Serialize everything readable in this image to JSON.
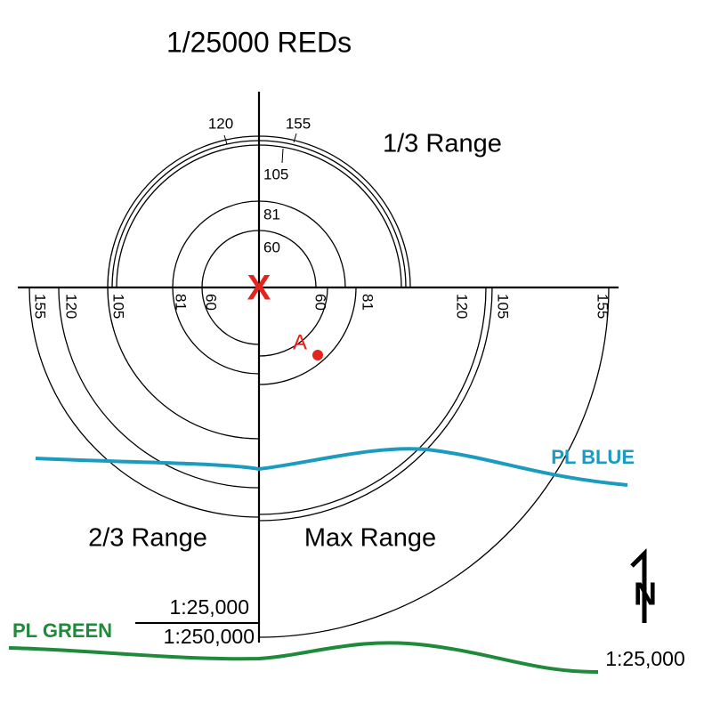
{
  "title": "1/25000 REDs",
  "sectors": {
    "one_third": {
      "label": "1/3 Range",
      "ring_labels": [
        "120",
        "155",
        "105",
        "81",
        "60"
      ]
    },
    "two_thirds": {
      "label": "2/3 Range",
      "ring_labels": [
        "155",
        "120",
        "105",
        "81",
        "60"
      ]
    },
    "max": {
      "label": "Max Range",
      "ring_labels": [
        "60",
        "81",
        "120",
        "105",
        "155"
      ]
    }
  },
  "center": "X",
  "point": {
    "label": "A"
  },
  "phase_lines": [
    "PL BLUE",
    "PL GREEN"
  ],
  "scale": {
    "top": "1:25,000",
    "bottom": "1:250,000"
  },
  "north": "N",
  "map_scale": "1:25,000"
}
